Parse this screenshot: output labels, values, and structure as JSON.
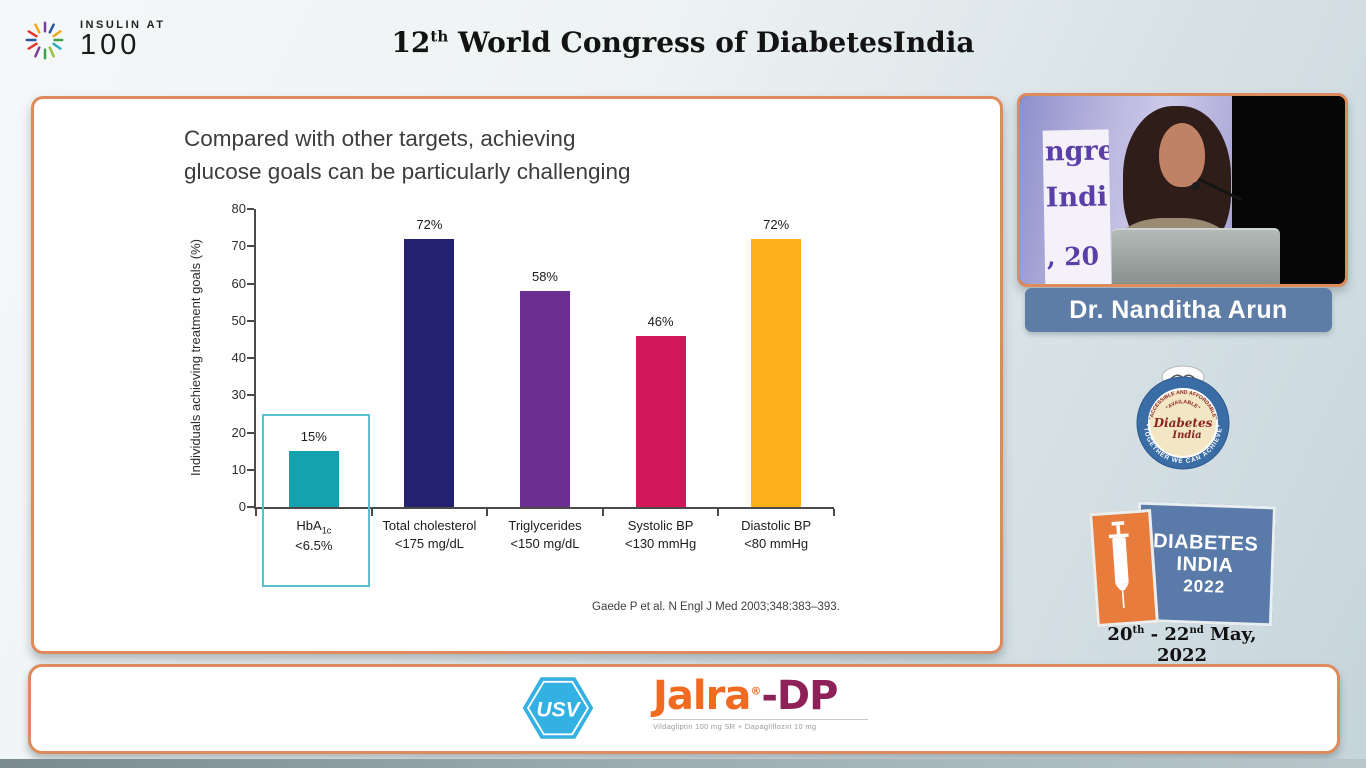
{
  "header": {
    "logo_line1": "INSULIN AT",
    "logo_line2": "100",
    "title_num": "12",
    "title_sup": "th",
    "title_rest": " World Congress of DiabetesIndia"
  },
  "slide": {
    "title_line1": "Compared with other targets, achieving",
    "title_line2": "glucose goals can be particularly challenging",
    "citation": "Gaede P et al. N Engl J Med 2003;348:383–393."
  },
  "chart_data": {
    "type": "bar",
    "title": "Compared with other targets, achieving glucose goals can be particularly challenging",
    "xlabel": "",
    "ylabel": "Individuals achieving treatment goals (%)",
    "ylim": [
      0,
      80
    ],
    "ytick_interval": 10,
    "grid": false,
    "legend": "none",
    "categories": [
      {
        "main": "HbA",
        "sub": "1c",
        "line2": "<6.5%"
      },
      {
        "main": "Total cholesterol",
        "line2": "<175 mg/dL"
      },
      {
        "main": "Triglycerides",
        "line2": "<150 mg/dL"
      },
      {
        "main": "Systolic BP",
        "line2": "<130 mmHg"
      },
      {
        "main": "Diastolic BP",
        "line2": "<80 mmHg"
      }
    ],
    "values": [
      15,
      72,
      58,
      46,
      72
    ],
    "labels": [
      "15%",
      "72%",
      "58%",
      "46%",
      "72%"
    ],
    "colors": [
      "#14a2af",
      "#232270",
      "#6b2e91",
      "#d2175b",
      "#fbaf19"
    ],
    "highlight": {
      "category_index": 0,
      "box_top_value": 25,
      "box_color": "#56c2cc"
    },
    "source": "Gaede P et al. N Engl J Med 2003;348:383–393."
  },
  "speaker": {
    "name": "Dr. Nanditha Arun",
    "backdrop_text": [
      "ngre",
      "Indi",
      ", 20"
    ]
  },
  "badge": {
    "ring_bottom": "\"TOGETHER WE CAN ACHIEVE\"",
    "inner_wide": "\"ACCESSIBLE AND AFFORDABLE\"",
    "inner_top": "\"AVAILABLE\"",
    "center1": "Diabetes",
    "center2": "India"
  },
  "event_logo": {
    "word1": "DIABETES",
    "word2": "INDIA",
    "word3": "2022",
    "date_p1": "20",
    "date_s1": "th",
    "date_p2": " - 22",
    "date_s2": "nd",
    "date_p3": " May, 2022"
  },
  "sponsors": {
    "usv_label": "USV",
    "jalra_main": "Jalra",
    "jalra_reg": "®",
    "jalra_dp": "-DP",
    "jalra_tagline": "Vildagliptin 100 mg SR + Dapagliflozin 10 mg"
  },
  "colors": {
    "panel_border": "#dd8a5c",
    "name_plate": "#5d7ca6",
    "event_blue": "#5a7ba9",
    "event_orange": "#e87c3c",
    "usv_blue": "#33b1e2",
    "jalra_orange": "#f16a21",
    "jalra_maroon": "#8e2158"
  }
}
